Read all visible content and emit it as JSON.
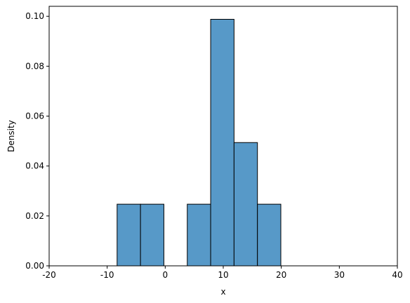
{
  "chart_data": {
    "type": "bar",
    "subtype": "histogram",
    "xlabel": "x",
    "ylabel": "Density",
    "xlim": [
      -20,
      40
    ],
    "ylim": [
      0,
      0.104
    ],
    "xticks": [
      -20,
      -10,
      0,
      10,
      20,
      30,
      40
    ],
    "yticks": [
      0.0,
      0.02,
      0.04,
      0.06,
      0.08,
      0.1
    ],
    "ytick_labels": [
      "0.00",
      "0.02",
      "0.04",
      "0.06",
      "0.08",
      "0.10"
    ],
    "bin_width": 4.03,
    "bins": [
      {
        "start": -8.29,
        "density": 0.0247
      },
      {
        "start": -4.26,
        "density": 0.0247
      },
      {
        "start": -0.23,
        "density": 0.0
      },
      {
        "start": 3.8,
        "density": 0.0247
      },
      {
        "start": 7.83,
        "density": 0.0988
      },
      {
        "start": 11.86,
        "density": 0.0494
      },
      {
        "start": 15.89,
        "density": 0.0247
      }
    ],
    "grid": false,
    "colors": {
      "bar_fill": "#5799C8",
      "bar_edge": "#000000"
    }
  }
}
